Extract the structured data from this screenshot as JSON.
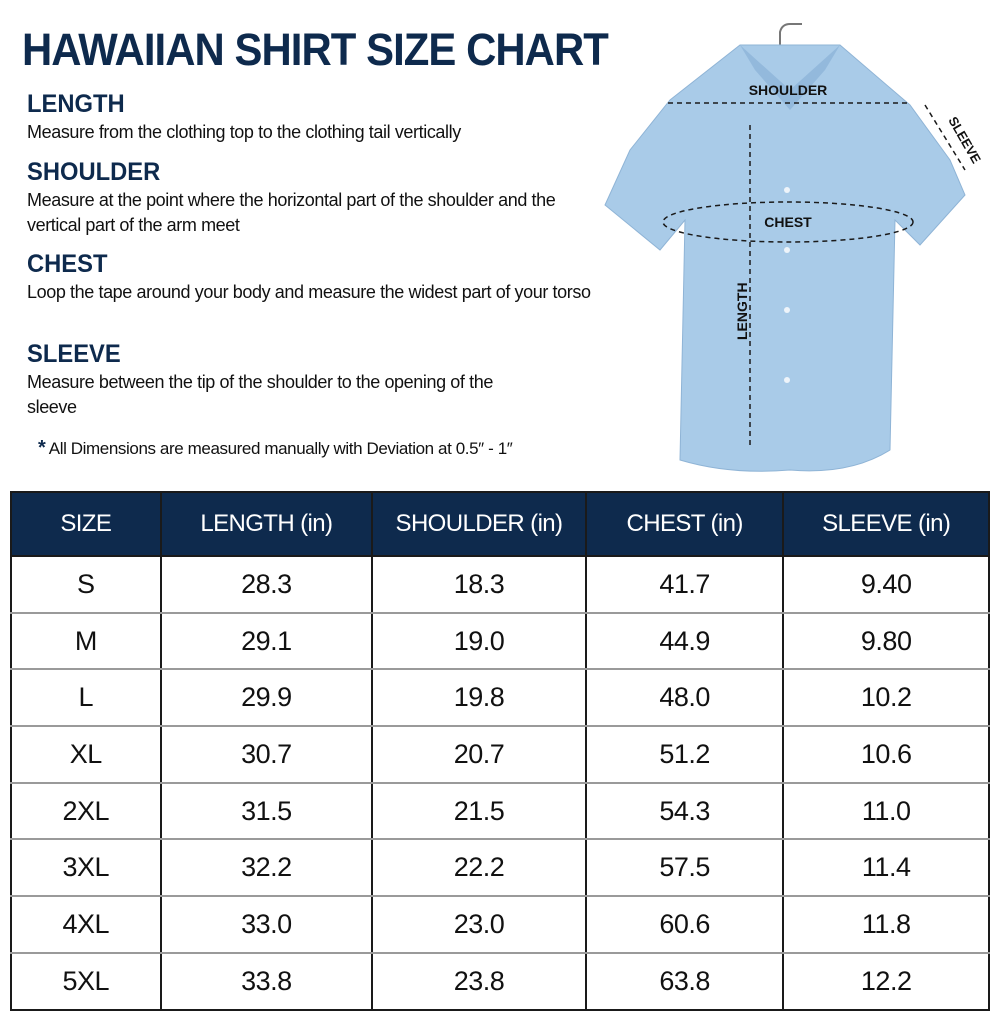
{
  "title": "HAWAIIAN SHIRT SIZE CHART",
  "sections": [
    {
      "heading": "LENGTH",
      "text": "Measure from the clothing top to the clothing tail vertically"
    },
    {
      "heading": "SHOULDER",
      "text": "Measure at the point where the horizontal part of the shoulder and the vertical part of the arm meet"
    },
    {
      "heading": "CHEST",
      "text": "Loop the tape around your body and measure the widest part of your torso"
    },
    {
      "heading": "SLEEVE",
      "text": "Measure between the tip of the shoulder to the opening of the sleeve"
    }
  ],
  "note": {
    "mark": "*",
    "text": "All Dimensions are measured manually with Deviation at 0.5″ - 1″"
  },
  "diagram": {
    "shoulder": "SHOULDER",
    "chest": "CHEST",
    "length": "LENGTH",
    "sleeve": "SLEEVE",
    "shirt_color": "#a9cbe8"
  },
  "colors": {
    "navy": "#0e2a4d"
  },
  "table": {
    "headers": [
      "SIZE",
      "LENGTH (in)",
      "SHOULDER (in)",
      "CHEST (in)",
      "SLEEVE (in)"
    ],
    "rows": [
      [
        "S",
        "28.3",
        "18.3",
        "41.7",
        "9.40"
      ],
      [
        "M",
        "29.1",
        "19.0",
        "44.9",
        "9.80"
      ],
      [
        "L",
        "29.9",
        "19.8",
        "48.0",
        "10.2"
      ],
      [
        "XL",
        "30.7",
        "20.7",
        "51.2",
        "10.6"
      ],
      [
        "2XL",
        "31.5",
        "21.5",
        "54.3",
        "11.0"
      ],
      [
        "3XL",
        "32.2",
        "22.2",
        "57.5",
        "11.4"
      ],
      [
        "4XL",
        "33.0",
        "23.0",
        "60.6",
        "11.8"
      ],
      [
        "5XL",
        "33.8",
        "23.8",
        "63.8",
        "12.2"
      ]
    ]
  }
}
